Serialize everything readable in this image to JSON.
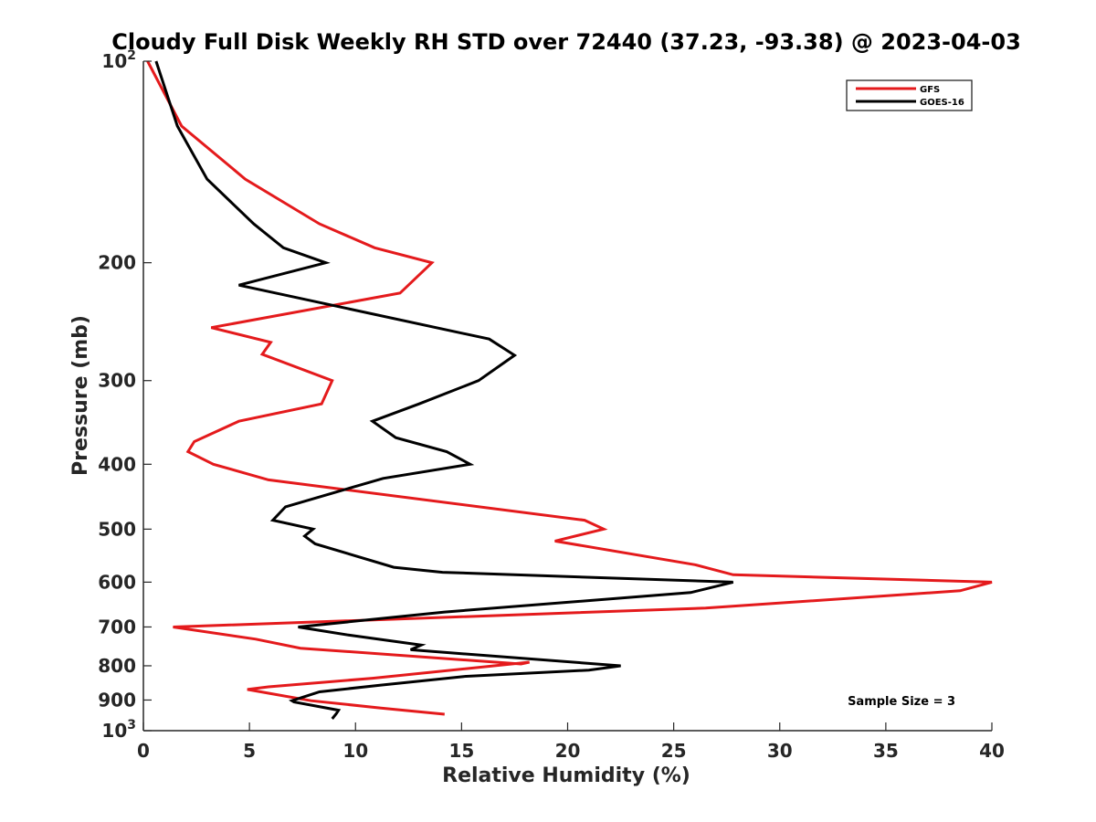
{
  "chart_data": {
    "type": "line",
    "title": "Cloudy Full Disk Weekly RH STD over 72440 (37.23, -93.38) @ 2023-04-03",
    "xlabel": "Relative Humidity (%)",
    "ylabel": "Pressure (mb)",
    "xlim": [
      0,
      40
    ],
    "ylim": [
      100,
      1000
    ],
    "yscale": "log",
    "y_reversed": true,
    "grid": false,
    "legend_position": "top-right",
    "x_ticks": [
      "0",
      "5",
      "10",
      "15",
      "20",
      "25",
      "30",
      "35",
      "40"
    ],
    "y_ticks": [
      {
        "value": 100,
        "base": "10",
        "exp": "2"
      },
      {
        "value": 200,
        "label": "200"
      },
      {
        "value": 300,
        "label": "300"
      },
      {
        "value": 400,
        "label": "400"
      },
      {
        "value": 500,
        "label": "500"
      },
      {
        "value": 600,
        "label": "600"
      },
      {
        "value": 700,
        "label": "700"
      },
      {
        "value": 800,
        "label": "800"
      },
      {
        "value": 900,
        "label": "900"
      },
      {
        "value": 1000,
        "base": "10",
        "exp": "3"
      }
    ],
    "series": [
      {
        "name": "GFS",
        "color": "#e41a1c",
        "points": [
          [
            0.2,
            100
          ],
          [
            1.8,
            125
          ],
          [
            4.8,
            150
          ],
          [
            8.3,
            175
          ],
          [
            10.9,
            190
          ],
          [
            13.6,
            200
          ],
          [
            12.1,
            222
          ],
          [
            3.2,
            250
          ],
          [
            6.0,
            263
          ],
          [
            5.6,
            274
          ],
          [
            8.9,
            300
          ],
          [
            8.4,
            325
          ],
          [
            4.5,
            345
          ],
          [
            2.4,
            370
          ],
          [
            2.1,
            383
          ],
          [
            3.3,
            400
          ],
          [
            5.9,
            422
          ],
          [
            20.8,
            485
          ],
          [
            21.7,
            500
          ],
          [
            19.4,
            521
          ],
          [
            26.0,
            565
          ],
          [
            27.8,
            585
          ],
          [
            40.0,
            600
          ],
          [
            38.5,
            618
          ],
          [
            26.5,
            656
          ],
          [
            1.4,
            700
          ],
          [
            5.3,
            730
          ],
          [
            7.4,
            753
          ],
          [
            17.8,
            795
          ],
          [
            18.2,
            790
          ],
          [
            10.8,
            835
          ],
          [
            5.9,
            860
          ],
          [
            4.9,
            868
          ],
          [
            7.9,
            902
          ],
          [
            11.2,
            925
          ],
          [
            14.2,
            945
          ]
        ]
      },
      {
        "name": "GOES-16",
        "color": "#000000",
        "points": [
          [
            0.6,
            100
          ],
          [
            1.6,
            125
          ],
          [
            3.0,
            150
          ],
          [
            5.2,
            175
          ],
          [
            6.6,
            190
          ],
          [
            8.6,
            200
          ],
          [
            4.5,
            216
          ],
          [
            16.3,
            260
          ],
          [
            17.5,
            275
          ],
          [
            15.8,
            300
          ],
          [
            13.0,
            325
          ],
          [
            10.8,
            345
          ],
          [
            11.9,
            365
          ],
          [
            14.3,
            383
          ],
          [
            15.4,
            400
          ],
          [
            11.3,
            420
          ],
          [
            6.7,
            463
          ],
          [
            6.1,
            485
          ],
          [
            8.0,
            500
          ],
          [
            7.6,
            512
          ],
          [
            8.1,
            526
          ],
          [
            11.8,
            570
          ],
          [
            14.1,
            580
          ],
          [
            27.8,
            600
          ],
          [
            25.8,
            622
          ],
          [
            14.2,
            665
          ],
          [
            7.3,
            700
          ],
          [
            9.7,
            720
          ],
          [
            13.1,
            745
          ],
          [
            12.6,
            757
          ],
          [
            22.5,
            800
          ],
          [
            21.0,
            812
          ],
          [
            15.1,
            830
          ],
          [
            11.2,
            855
          ],
          [
            8.3,
            875
          ],
          [
            7.0,
            902
          ],
          [
            7.1,
            906
          ],
          [
            9.2,
            932
          ],
          [
            9.1,
            943
          ],
          [
            8.9,
            960
          ]
        ]
      }
    ],
    "annotations": [
      {
        "text": "Sample Size = 3",
        "x": 33.2,
        "y": 905
      }
    ]
  }
}
